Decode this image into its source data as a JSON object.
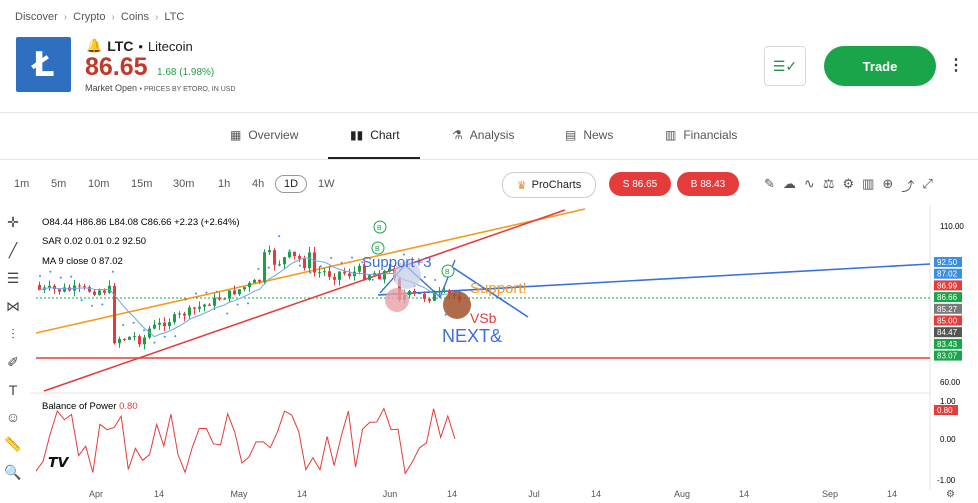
{
  "breadcrumb": [
    "Discover",
    "Crypto",
    "Coins",
    "LTC"
  ],
  "header": {
    "logo_glyph": "Ł",
    "symbol": "LTC",
    "name": "Litecoin",
    "price": "86.65",
    "change": "1.68 (1.98%)",
    "market_status": "Market Open",
    "price_source": "PRICES BY ETORO, IN USD",
    "trade_label": "Trade"
  },
  "tabs": [
    {
      "label": "Overview",
      "icon": "grid-icon"
    },
    {
      "label": "Chart",
      "icon": "candles-icon"
    },
    {
      "label": "Analysis",
      "icon": "flask-icon"
    },
    {
      "label": "News",
      "icon": "news-icon"
    },
    {
      "label": "Financials",
      "icon": "bars-icon"
    }
  ],
  "timeframes": [
    "1m",
    "5m",
    "10m",
    "15m",
    "30m",
    "1h",
    "4h",
    "1D",
    "1W"
  ],
  "selected_timeframe": "1D",
  "toolbar": {
    "prochart_label": "ProCharts",
    "sell_label": "S 86.65",
    "buy_label": "B 88.43"
  },
  "legend": {
    "ohlc": {
      "o": "O84.44",
      "h": "H86.86",
      "l": "L84.08",
      "c": "C86.66",
      "chg": "+2.23 (+2.64%)"
    },
    "sar": {
      "label": "SAR 0.02 0.01 0.2",
      "value": "92.50"
    },
    "ma": {
      "label": "MA 9 close 0",
      "value": "87.02"
    },
    "bop": {
      "label": "Balance of Power",
      "value": "0.80"
    }
  },
  "annotations": {
    "support_1": "Support+3",
    "support_2": "Support!",
    "vsb": "VSb",
    "next": "NEXT&",
    "signal": "B"
  },
  "price_axis": {
    "top": "110.00",
    "bottom": "60.00",
    "tags": [
      {
        "text": "92.50",
        "color": "#3a8ee6"
      },
      {
        "text": "87.02",
        "color": "#3a8ee6"
      },
      {
        "text": "86.99",
        "color": "#e53b3b"
      },
      {
        "text": "86.66",
        "color": "#1aa54a"
      },
      {
        "text": "85.27",
        "color": "#7a7a7a"
      },
      {
        "text": "85.00",
        "color": "#e53b3b"
      },
      {
        "text": "84.47",
        "color": "#555555"
      },
      {
        "text": "83.43",
        "color": "#1aa54a"
      },
      {
        "text": "83.07",
        "color": "#1aa54a"
      }
    ]
  },
  "bop_axis": {
    "top": "1.00",
    "mid": "0.00",
    "bottom": "-1.00",
    "tag": "0.80"
  },
  "time_axis": [
    "Apr",
    "14",
    "May",
    "14",
    "Jun",
    "14",
    "Jul",
    "14",
    "Aug",
    "14",
    "Sep",
    "14"
  ],
  "colors": {
    "accent_green": "#1aa54a",
    "price_red": "#c0392b",
    "up": "#1e9e4a",
    "down": "#e53b3b",
    "logo_blue": "#2f6fc0"
  }
}
